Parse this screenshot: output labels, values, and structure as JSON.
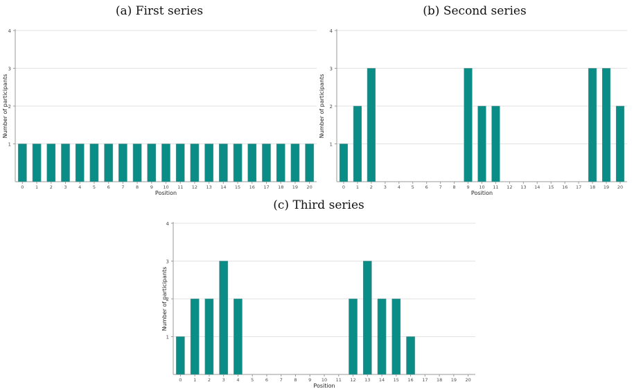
{
  "colors": {
    "bar": "#0a8c87",
    "bar_edge": "#5d8f8d",
    "grid": "#e2e2e2",
    "axis": "#9a9a9a",
    "text": "#4d4d4d"
  },
  "chart_data": [
    {
      "type": "bar",
      "title": "(a) First series",
      "xlabel": "Position",
      "ylabel": "Number of participants",
      "categories": [
        "0",
        "1",
        "2",
        "3",
        "4",
        "5",
        "6",
        "7",
        "8",
        "9",
        "10",
        "11",
        "12",
        "13",
        "14",
        "15",
        "16",
        "17",
        "18",
        "19",
        "20"
      ],
      "values": [
        1,
        1,
        1,
        1,
        1,
        1,
        1,
        1,
        1,
        1,
        1,
        1,
        1,
        1,
        1,
        1,
        1,
        1,
        1,
        1,
        1
      ],
      "ylim": [
        0,
        4
      ],
      "yticks": [
        1,
        2,
        3,
        4
      ],
      "grid": true
    },
    {
      "type": "bar",
      "title": "(b) Second series",
      "xlabel": "Position",
      "ylabel": "Number of participants",
      "categories": [
        "0",
        "1",
        "2",
        "3",
        "4",
        "5",
        "6",
        "7",
        "8",
        "9",
        "10",
        "11",
        "12",
        "13",
        "14",
        "15",
        "16",
        "17",
        "18",
        "19",
        "20"
      ],
      "values": [
        1,
        2,
        3,
        0,
        0,
        0,
        0,
        0,
        0,
        3,
        2,
        2,
        0,
        0,
        0,
        0,
        0,
        0,
        3,
        3,
        2
      ],
      "ylim": [
        0,
        4
      ],
      "yticks": [
        1,
        2,
        3,
        4
      ],
      "grid": true
    },
    {
      "type": "bar",
      "title": "(c) Third series",
      "xlabel": "Position",
      "ylabel": "Number of participants",
      "categories": [
        "0",
        "1",
        "2",
        "3",
        "4",
        "5",
        "6",
        "7",
        "8",
        "9",
        "10",
        "11",
        "12",
        "13",
        "14",
        "15",
        "16",
        "17",
        "18",
        "19",
        "20"
      ],
      "values": [
        1,
        2,
        2,
        3,
        2,
        0,
        0,
        0,
        0,
        0,
        0,
        0,
        2,
        3,
        2,
        2,
        1,
        0,
        0,
        0,
        0
      ],
      "ylim": [
        0,
        4
      ],
      "yticks": [
        1,
        2,
        3,
        4
      ],
      "grid": true
    }
  ]
}
